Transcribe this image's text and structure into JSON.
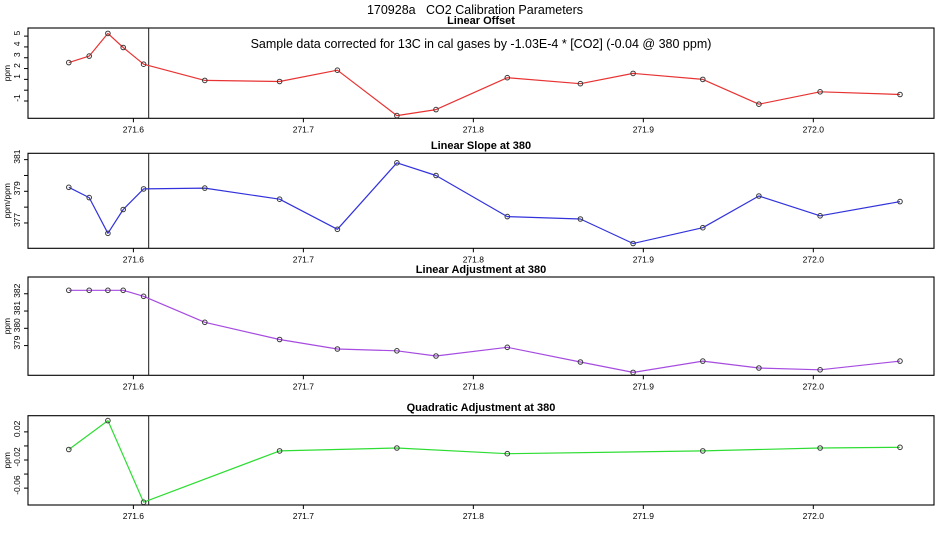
{
  "title": "170928a   CO2 Calibration Parameters",
  "annotation": "Sample data corrected for 13C in cal gases by -1.03E-4 * [CO2] (-0.04 @ 380 ppm)",
  "colors": {
    "offset_line": "#e83333",
    "slope_line": "#3232dc",
    "linear_adj_line": "#a64ce0",
    "quad_adj_line": "#2edd33",
    "marker_stroke": "#3a3a3a",
    "axis": "#000000",
    "vline": "#1a1a1a"
  },
  "chart_data": [
    {
      "type": "line",
      "title": "Linear Offset",
      "ylabel": "ppm",
      "color": "#e83333",
      "marker": "open-circle",
      "legend": "none",
      "grid": false,
      "vline_x": 271.609,
      "xlim": [
        271.538,
        272.071
      ],
      "ylim": [
        -2.6,
        5.75
      ],
      "xticks": [
        271.6,
        271.7,
        271.8,
        271.9,
        272.0
      ],
      "xtick_labels": [
        "271.6",
        "271.7",
        "271.8",
        "271.9",
        "272.0"
      ],
      "yticks": [
        -1,
        1,
        2,
        3,
        4,
        5
      ],
      "ytick_labels": [
        "-1",
        "1",
        "2",
        "3",
        "4",
        "5"
      ],
      "yticks_minor": [
        0
      ],
      "x": [
        271.562,
        271.574,
        271.585,
        271.594,
        271.606,
        271.642,
        271.686,
        271.72,
        271.755,
        271.778,
        271.82,
        271.863,
        271.894,
        271.935,
        271.968,
        272.004,
        272.051
      ],
      "y": [
        2.55,
        3.15,
        5.25,
        3.95,
        2.4,
        0.9,
        0.8,
        1.85,
        -2.35,
        -1.8,
        1.15,
        0.6,
        1.55,
        1.0,
        -1.3,
        -0.15,
        -0.4
      ]
    },
    {
      "type": "line",
      "title": "Linear Slope at 380",
      "ylabel": "ppm/ppm",
      "color": "#3232dc",
      "marker": "open-circle",
      "legend": "none",
      "grid": false,
      "vline_x": 271.609,
      "xlim": [
        271.538,
        272.071
      ],
      "ylim": [
        375.4,
        381.4
      ],
      "xticks": [
        271.6,
        271.7,
        271.8,
        271.9,
        272.0
      ],
      "xtick_labels": [
        "271.6",
        "271.7",
        "271.8",
        "271.9",
        "272.0"
      ],
      "yticks": [
        377,
        379,
        381
      ],
      "ytick_labels": [
        "377",
        "379",
        "381"
      ],
      "yticks_minor": [
        378,
        380
      ],
      "x": [
        271.562,
        271.574,
        271.585,
        271.594,
        271.606,
        271.642,
        271.686,
        271.72,
        271.755,
        271.778,
        271.82,
        271.863,
        271.894,
        271.935,
        271.968,
        272.004,
        272.051
      ],
      "y": [
        379.25,
        378.6,
        376.35,
        377.85,
        379.15,
        379.2,
        378.5,
        376.6,
        380.8,
        380.0,
        377.4,
        377.25,
        375.7,
        376.7,
        378.7,
        377.45,
        378.35
      ]
    },
    {
      "type": "line",
      "title": "Linear Adjustment at 380",
      "ylabel": "ppm",
      "color": "#a64ce0",
      "marker": "open-circle",
      "legend": "none",
      "grid": false,
      "vline_x": 271.609,
      "xlim": [
        271.538,
        272.071
      ],
      "ylim": [
        377.28,
        382.97
      ],
      "xticks": [
        271.6,
        271.7,
        271.8,
        271.9,
        272.0
      ],
      "xtick_labels": [
        "271.6",
        "271.7",
        "271.8",
        "271.9",
        "272.0"
      ],
      "yticks": [
        379,
        380,
        381,
        382
      ],
      "ytick_labels": [
        "379",
        "380",
        "381",
        "382"
      ],
      "yticks_minor": [],
      "x": [
        271.562,
        271.574,
        271.585,
        271.594,
        271.606,
        271.642,
        271.686,
        271.72,
        271.755,
        271.778,
        271.82,
        271.863,
        271.894,
        271.935,
        271.968,
        272.004,
        272.051
      ],
      "y": [
        382.2,
        382.2,
        382.2,
        382.2,
        381.85,
        380.35,
        379.35,
        378.8,
        378.7,
        378.4,
        378.9,
        378.05,
        377.45,
        378.1,
        377.7,
        377.6,
        378.1
      ]
    },
    {
      "type": "line",
      "title": "Quadratic Adjustment at 380",
      "ylabel": "ppm",
      "color": "#2edd33",
      "marker": "open-circle",
      "legend": "none",
      "grid": false,
      "vline_x": 271.609,
      "xlim": [
        271.538,
        272.071
      ],
      "ylim": [
        -0.084,
        0.043
      ],
      "xticks": [
        271.6,
        271.7,
        271.8,
        271.9,
        272.0
      ],
      "xtick_labels": [
        "271.6",
        "271.7",
        "271.8",
        "271.9",
        "272.0"
      ],
      "yticks": [
        -0.06,
        -0.02,
        0.02
      ],
      "ytick_labels": [
        "-0.06",
        "-0.02",
        "0.02"
      ],
      "yticks_minor": [
        -0.04,
        0.0
      ],
      "x": [
        271.562,
        271.585,
        271.606,
        271.686,
        271.755,
        271.82,
        271.935,
        272.004,
        272.051
      ],
      "y": [
        -0.005,
        0.036,
        -0.08,
        -0.007,
        -0.003,
        -0.011,
        -0.007,
        -0.003,
        -0.002
      ]
    }
  ]
}
